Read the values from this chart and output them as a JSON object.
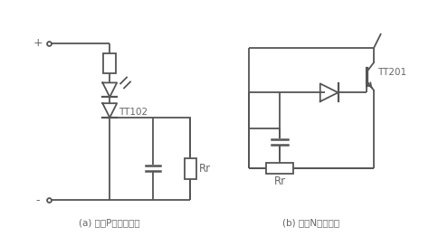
{
  "background_color": "#ffffff",
  "line_color": "#555555",
  "text_color": "#666666",
  "label_a": "(a) 采用P型热品闸管",
  "label_b": "(b) 采用N型热敏管",
  "label_tt102": "TT102",
  "label_tt201": "TT201",
  "label_rr": "Rr",
  "label_plus": "+",
  "label_minus": "-",
  "figsize": [
    4.74,
    2.62
  ],
  "dpi": 100
}
